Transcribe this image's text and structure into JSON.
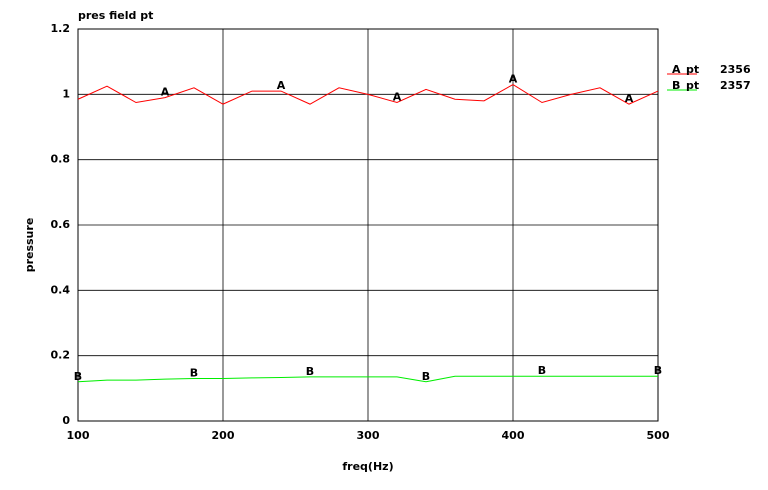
{
  "chart_data": {
    "type": "line",
    "title": "pres field pt",
    "x_label": "freq(Hz)",
    "y_label": "pressure",
    "x": [
      100,
      120,
      140,
      160,
      180,
      200,
      220,
      240,
      260,
      280,
      300,
      320,
      340,
      360,
      380,
      400,
      420,
      440,
      460,
      480,
      500
    ],
    "series": [
      {
        "name": "pt",
        "marker": "A",
        "id": "2356",
        "color": "#ff0000",
        "values": [
          0.985,
          1.025,
          0.975,
          0.99,
          1.02,
          0.97,
          1.01,
          1.01,
          0.97,
          1.02,
          1.0,
          0.975,
          1.015,
          0.985,
          0.98,
          1.03,
          0.975,
          1.0,
          1.02,
          0.97,
          1.01
        ]
      },
      {
        "name": "pt",
        "marker": "B",
        "id": "2357",
        "color": "#00ee00",
        "values": [
          0.12,
          0.125,
          0.125,
          0.128,
          0.13,
          0.13,
          0.132,
          0.133,
          0.135,
          0.135,
          0.135,
          0.135,
          0.12,
          0.137,
          0.137,
          0.137,
          0.137,
          0.137,
          0.137,
          0.137,
          0.137
        ]
      }
    ],
    "xlim": [
      100,
      500
    ],
    "ylim": [
      0,
      1.2
    ],
    "xticks": [
      100,
      200,
      300,
      400,
      500
    ],
    "yticks": [
      0,
      0.2,
      0.4,
      0.6,
      0.8,
      1,
      1.2
    ],
    "grid": true
  }
}
